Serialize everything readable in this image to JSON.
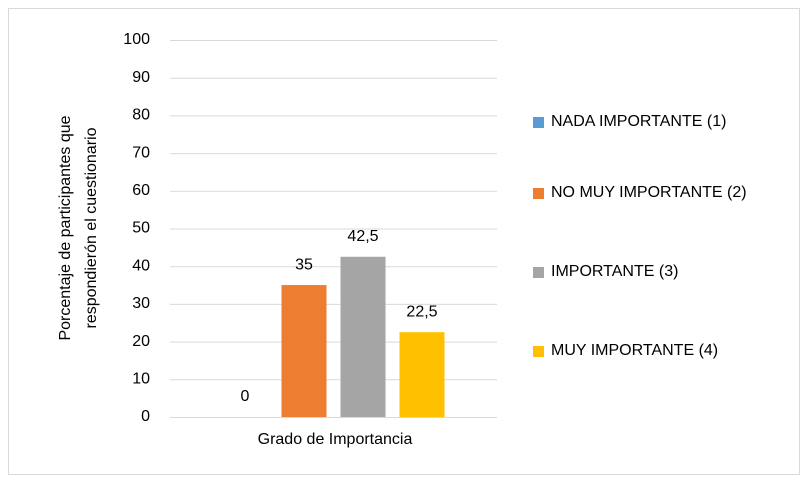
{
  "chart_data": {
    "type": "bar",
    "categories": [
      "Grado de Importancia"
    ],
    "x_label": "Grado de Importancia",
    "y_label": [
      "Porcentaje de participantes que",
      "respondierón el cuestionario"
    ],
    "series": [
      {
        "name": "NADA IMPORTANTE (1)",
        "color": "#5b9bd5",
        "values": [
          0
        ],
        "value_labels": [
          "0"
        ]
      },
      {
        "name": "NO MUY IMPORTANTE (2)",
        "color": "#ed7d31",
        "values": [
          35
        ],
        "value_labels": [
          "35"
        ]
      },
      {
        "name": "IMPORTANTE (3)",
        "color": "#a5a5a5",
        "values": [
          42.5
        ],
        "value_labels": [
          "42,5"
        ]
      },
      {
        "name": "MUY IMPORTANTE (4)",
        "color": "#ffc000",
        "values": [
          22.5
        ],
        "value_labels": [
          "22,5"
        ]
      }
    ],
    "ylim": [
      0,
      100
    ],
    "yticks": [
      0,
      10,
      20,
      30,
      40,
      50,
      60,
      70,
      80,
      90,
      100
    ],
    "grid": true,
    "legend": "right"
  }
}
